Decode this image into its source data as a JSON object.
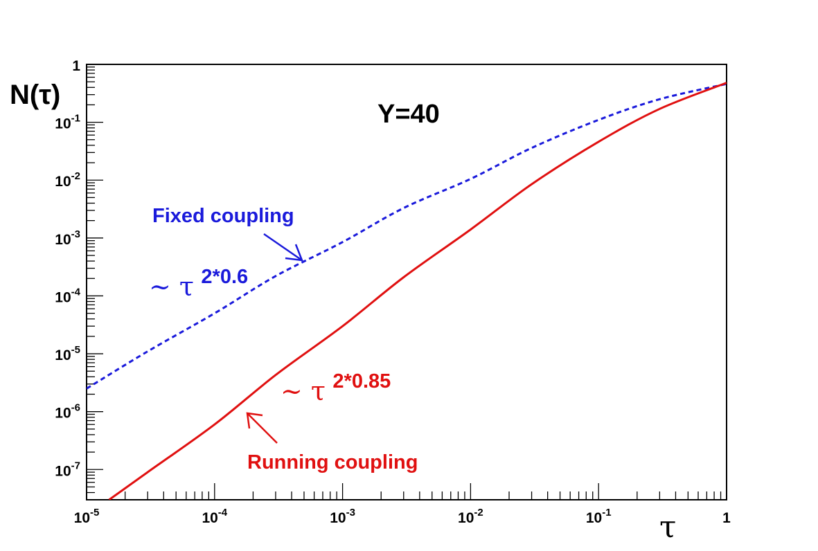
{
  "chart_data": {
    "type": "line",
    "title": "Y=40",
    "xlabel": "τ",
    "ylabel": "N(τ)",
    "xscale": "log",
    "yscale": "log",
    "xlim": [
      1e-05,
      1
    ],
    "ylim": [
      3e-08,
      1
    ],
    "grid": false,
    "x_tick_labels": [
      {
        "value": 1e-05,
        "base": "10",
        "exp": "-5"
      },
      {
        "value": 0.0001,
        "base": "10",
        "exp": "-4"
      },
      {
        "value": 0.001,
        "base": "10",
        "exp": "-3"
      },
      {
        "value": 0.01,
        "base": "10",
        "exp": "-2"
      },
      {
        "value": 0.1,
        "base": "10",
        "exp": "-1"
      },
      {
        "value": 1,
        "base": "1",
        "exp": ""
      }
    ],
    "y_tick_labels": [
      {
        "value": 1,
        "base": "1",
        "exp": ""
      },
      {
        "value": 0.1,
        "base": "10",
        "exp": "-1"
      },
      {
        "value": 0.01,
        "base": "10",
        "exp": "-2"
      },
      {
        "value": 0.001,
        "base": "10",
        "exp": "-3"
      },
      {
        "value": 0.0001,
        "base": "10",
        "exp": "-4"
      },
      {
        "value": 1e-05,
        "base": "10",
        "exp": "-5"
      },
      {
        "value": 1e-06,
        "base": "10",
        "exp": "-6"
      },
      {
        "value": 1e-07,
        "base": "10",
        "exp": "-7"
      }
    ],
    "series": [
      {
        "color": "#1a1adb",
        "style": "dashed",
        "x": [
          1e-05,
          3e-05,
          0.0001,
          0.0003,
          0.001,
          0.003,
          0.01,
          0.03,
          0.1,
          0.3,
          1
        ],
        "y": [
          2.5e-06,
          1.1e-05,
          5e-05,
          0.00022,
          0.00085,
          0.0033,
          0.0105,
          0.036,
          0.11,
          0.25,
          0.46
        ]
      },
      {
        "color": "#e01010",
        "style": "solid",
        "x": [
          1.5e-05,
          3e-05,
          0.0001,
          0.0003,
          0.001,
          0.003,
          0.01,
          0.03,
          0.1,
          0.3,
          1
        ],
        "y": [
          3e-08,
          9e-08,
          6e-07,
          4.3e-06,
          3e-05,
          0.00021,
          0.0014,
          0.0085,
          0.046,
          0.17,
          0.48
        ]
      }
    ],
    "annotations": [
      {
        "id": "fixed-label",
        "text": "Fixed coupling",
        "color": "#1a1adb"
      },
      {
        "id": "fixed-power",
        "base": "~ τ",
        "exp": "2*0.6",
        "color": "#1a1adb"
      },
      {
        "id": "running-power",
        "base": "~ τ",
        "exp": "2*0.85",
        "color": "#e01010"
      },
      {
        "id": "running-label",
        "text": "Running coupling",
        "color": "#e01010"
      }
    ]
  }
}
